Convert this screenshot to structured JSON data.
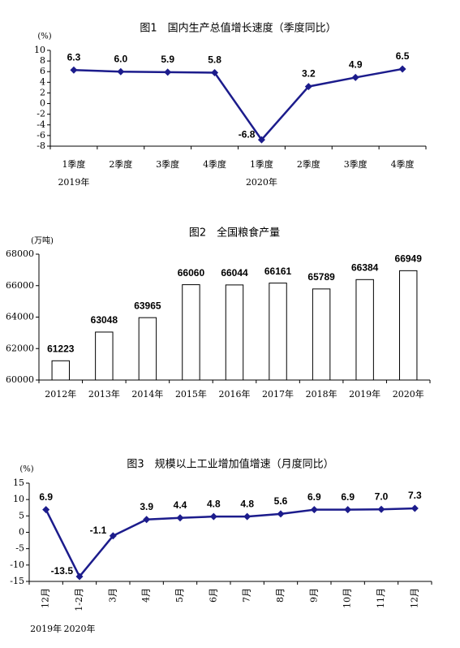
{
  "chart_data": [
    {
      "type": "line",
      "title": "图1　国内生产总值增长速度（季度同比）",
      "y_label": "(%)",
      "categories": [
        "1季度",
        "2季度",
        "3季度",
        "4季度",
        "1季度",
        "2季度",
        "3季度",
        "4季度"
      ],
      "category_groups": [
        "2019年",
        null,
        null,
        null,
        "2020年",
        null,
        null,
        null
      ],
      "values": [
        6.3,
        6.0,
        5.9,
        5.8,
        -6.8,
        3.2,
        4.9,
        6.5
      ],
      "value_labels": [
        "6.3",
        "6.0",
        "5.9",
        "5.8",
        "-6.8",
        "3.2",
        "4.9",
        "6.5"
      ],
      "color": "#1c1c8c",
      "ylim": [
        -8,
        10
      ],
      "yticks": [
        -8,
        -6,
        -4,
        -2,
        0,
        2,
        4,
        6,
        8,
        10
      ]
    },
    {
      "type": "bar",
      "title": "图2　全国粮食产量",
      "y_label": "(万吨)",
      "categories": [
        "2012年",
        "2013年",
        "2014年",
        "2015年",
        "2016年",
        "2017年",
        "2018年",
        "2019年",
        "2020年"
      ],
      "values": [
        61223,
        63048,
        63965,
        66060,
        66044,
        66161,
        65789,
        66384,
        66949
      ],
      "color": "#ffffff",
      "ylim": [
        60000,
        68000
      ],
      "yticks": [
        60000,
        62000,
        64000,
        66000,
        68000
      ]
    },
    {
      "type": "line",
      "title": "图3　规模以上工业增加值增速（月度同比）",
      "y_label": "(%)",
      "categories": [
        "12月",
        "1-2月",
        "3月",
        "4月",
        "5月",
        "6月",
        "7月",
        "8月",
        "9月",
        "10月",
        "11月",
        "12月"
      ],
      "category_groups": [
        "2019年",
        "2020年",
        null,
        null,
        null,
        null,
        null,
        null,
        null,
        null,
        null,
        null
      ],
      "values": [
        6.9,
        -13.5,
        -1.1,
        3.9,
        4.4,
        4.8,
        4.8,
        5.6,
        6.9,
        6.9,
        7.0,
        7.3
      ],
      "value_labels": [
        "6.9",
        "-13.5",
        "-1.1",
        "3.9",
        "4.4",
        "4.8",
        "4.8",
        "5.6",
        "6.9",
        "6.9",
        "7.0",
        "7.3"
      ],
      "color": "#1c1c8c",
      "ylim": [
        -15,
        15
      ],
      "yticks": [
        -15,
        -10,
        -5,
        0,
        5,
        10,
        15
      ],
      "rotate_labels": true
    }
  ]
}
